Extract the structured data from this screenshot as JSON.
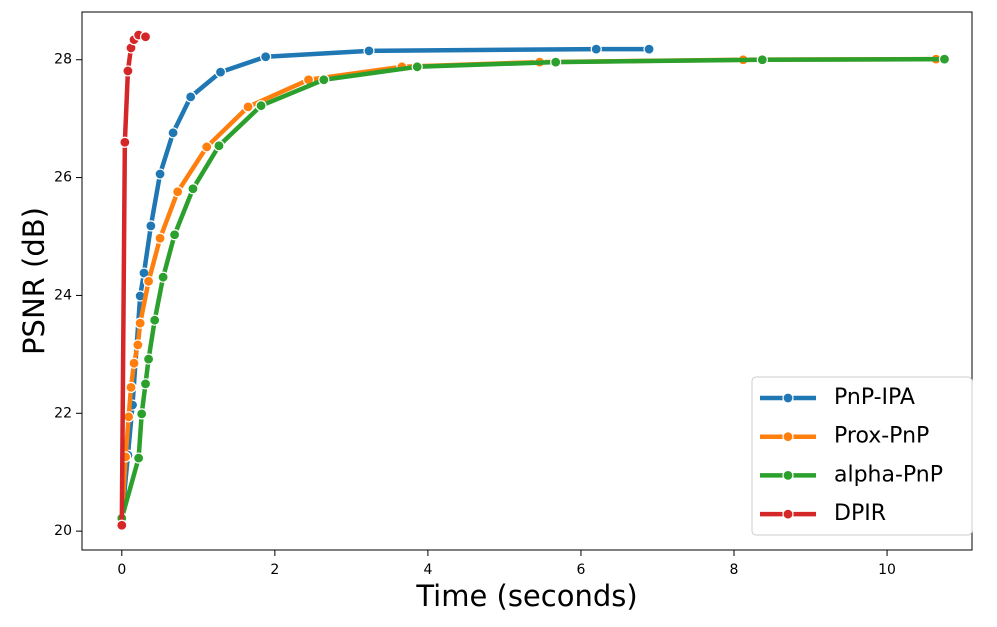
{
  "chart_data": {
    "type": "line",
    "xlabel": "Time (seconds)",
    "ylabel": "PSNR (dB)",
    "xlim": [
      -0.52,
      11.11
    ],
    "ylim": [
      19.68,
      28.81
    ],
    "xticks": [
      0,
      2,
      4,
      6,
      8,
      10
    ],
    "yticks": [
      20,
      22,
      24,
      26,
      28
    ],
    "legend": "lower right",
    "series": [
      {
        "name": "PnP-IPA",
        "color": "#1f77b4",
        "x": [
          0,
          0.08,
          0.14,
          0.24,
          0.29,
          0.38,
          0.5,
          0.67,
          0.9,
          1.29,
          1.88,
          3.23,
          6.2,
          6.89
        ],
        "values": [
          20.19,
          21.29,
          22.14,
          23.99,
          24.38,
          25.18,
          26.06,
          26.76,
          27.37,
          27.79,
          28.05,
          28.15,
          28.18,
          28.18
        ]
      },
      {
        "name": "Prox-PnP",
        "color": "#ff7f0e",
        "x": [
          0,
          0.05,
          0.09,
          0.12,
          0.16,
          0.21,
          0.24,
          0.35,
          0.5,
          0.73,
          1.11,
          1.65,
          2.44,
          3.66,
          5.46,
          8.12,
          10.64
        ],
        "values": [
          20.19,
          21.26,
          21.94,
          22.44,
          22.85,
          23.16,
          23.53,
          24.24,
          24.97,
          25.76,
          26.52,
          27.2,
          27.66,
          27.88,
          27.96,
          28.0,
          28.01
        ]
      },
      {
        "name": "alpha-PnP",
        "color": "#2ca02c",
        "x": [
          0,
          0.22,
          0.26,
          0.31,
          0.35,
          0.43,
          0.54,
          0.69,
          0.93,
          1.27,
          1.82,
          2.64,
          3.86,
          5.67,
          8.37,
          10.75
        ],
        "values": [
          20.22,
          21.24,
          21.99,
          22.5,
          22.92,
          23.58,
          24.31,
          25.03,
          25.81,
          26.54,
          27.22,
          27.66,
          27.88,
          27.96,
          28.0,
          28.01
        ]
      },
      {
        "name": "DPIR",
        "color": "#d62728",
        "x": [
          0,
          0.04,
          0.08,
          0.12,
          0.16,
          0.22,
          0.31
        ],
        "values": [
          20.1,
          26.6,
          27.81,
          28.2,
          28.34,
          28.42,
          28.39
        ]
      }
    ]
  }
}
